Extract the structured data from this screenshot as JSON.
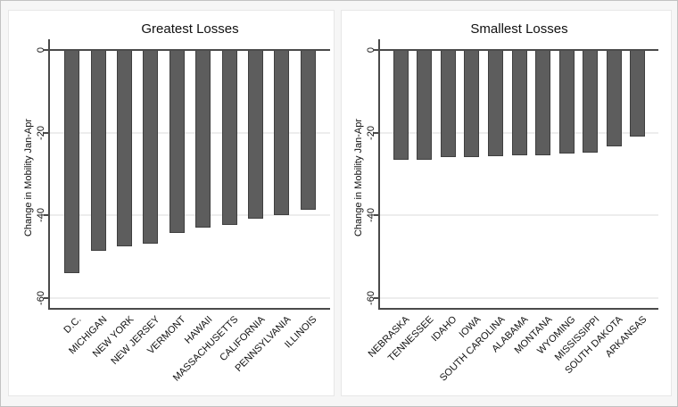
{
  "colors": {
    "bar_fill": "#5d5d5d",
    "bar_border": "#3f3f3f",
    "axis": "#4a4a4a",
    "gridline": "#ededed",
    "panel_background": "#ffffff",
    "panel_border": "#e7e7e7",
    "page_background": "#f6f6f6",
    "frame_border": "#c2c2c2",
    "text": "#111111"
  },
  "chart_data": [
    {
      "type": "bar",
      "title": "Greatest Losses",
      "xlabel": "",
      "ylabel": "Change in Mobility Jan-Apr",
      "categories": [
        "D.C.",
        "MICHIGAN",
        "NEW YORK",
        "NEW JERSEY",
        "VERMONT",
        "HAWAII",
        "MASSACHUSETTS",
        "CALIFORNIA",
        "PENNSYLVANIA",
        "ILLINOIS"
      ],
      "values": [
        -54,
        -48.6,
        -47.6,
        -46.9,
        -44.3,
        -42.9,
        -42.3,
        -40.9,
        -40,
        -38.6
      ],
      "ylim": [
        -62.5,
        2.5
      ],
      "yticks": [
        0,
        -20,
        -40,
        -60
      ],
      "ytick_labels": [
        "0",
        "-20",
        "-40",
        "-60"
      ],
      "grid": true,
      "legend": "none"
    },
    {
      "type": "bar",
      "title": "Smallest Losses",
      "xlabel": "",
      "ylabel": "Change in Mobility Jan-Apr",
      "categories": [
        "NEBRASKA",
        "TENNESSEE",
        "IDAHO",
        "IOWA",
        "SOUTH CAROLINA",
        "ALABAMA",
        "MONTANA",
        "WYOMING",
        "MISSISSIPPI",
        "SOUTH DAKOTA",
        "ARKANSAS"
      ],
      "values": [
        -26.6,
        -26.6,
        -25.8,
        -25.8,
        -25.7,
        -25.4,
        -25.4,
        -25.1,
        -24.9,
        -23.3,
        -21
      ],
      "ylim": [
        -62.5,
        2.5
      ],
      "yticks": [
        0,
        -20,
        -40,
        -60
      ],
      "ytick_labels": [
        "0",
        "-20",
        "-40",
        "-60"
      ],
      "grid": true,
      "legend": "none"
    }
  ]
}
